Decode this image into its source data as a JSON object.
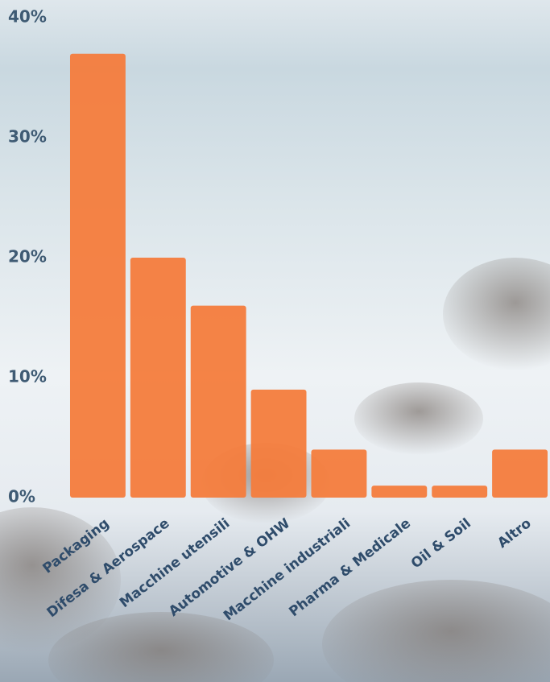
{
  "chart_data": {
    "type": "bar",
    "categories": [
      "Packaging",
      "Difesa & Aerospace",
      "Macchine utensili",
      "Automotive & OHW",
      "Macchine industriali",
      "Pharma & Medicale",
      "Oil & Soil",
      "Altro"
    ],
    "values": [
      37,
      20,
      16,
      9,
      4,
      1,
      1,
      4
    ],
    "color": "#f47c3c",
    "ylim": [
      0,
      40
    ],
    "yticks": [
      {
        "value": 0,
        "label": "0%"
      },
      {
        "value": 10,
        "label": "10%"
      },
      {
        "value": 20,
        "label": "20%"
      },
      {
        "value": 30,
        "label": "30%"
      },
      {
        "value": 40,
        "label": "40%"
      }
    ],
    "grid": false
  }
}
